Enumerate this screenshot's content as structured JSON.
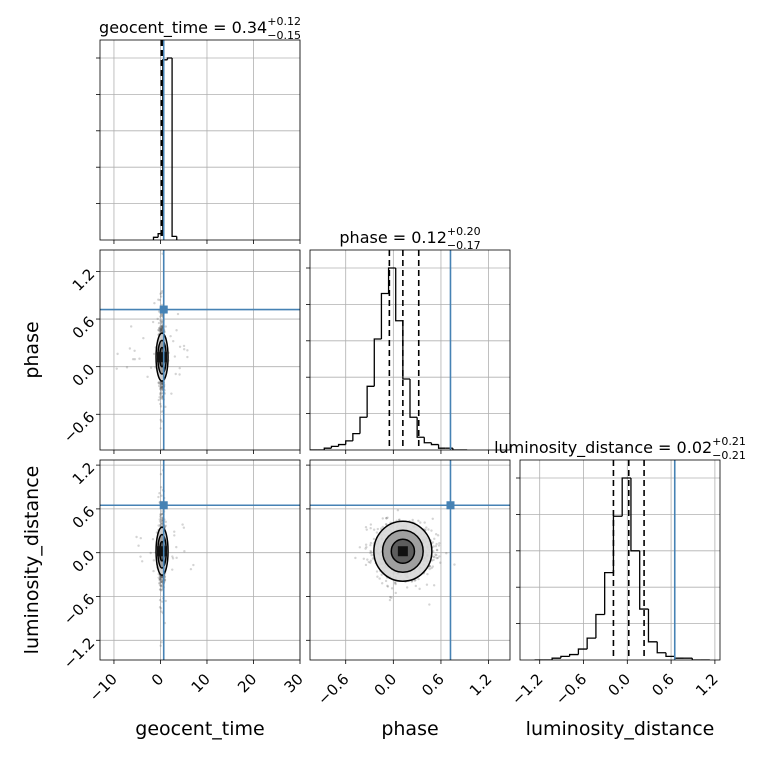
{
  "chart_data": {
    "type": "corner",
    "parameters": [
      {
        "name": "geocent_time",
        "label": "geocent_time",
        "median": 0.34,
        "plus": "0.12",
        "minus": "0.15",
        "median_text": "0.34",
        "range": [
          -13,
          30
        ],
        "ticks": [
          -10,
          0,
          10,
          20,
          30
        ],
        "tick_labels": [
          "−10",
          "0",
          "10",
          "20",
          "30"
        ],
        "truth": 0.7
      },
      {
        "name": "phase",
        "label": "phase",
        "median": 0.12,
        "plus": "0.20",
        "minus": "0.17",
        "median_text": "0.12",
        "range": [
          -1.05,
          1.47
        ],
        "ticks": [
          -0.6,
          0.0,
          0.6,
          1.2
        ],
        "tick_labels": [
          "−0.6",
          "0.0",
          "0.6",
          "1.2"
        ],
        "truth": 0.72
      },
      {
        "name": "luminosity_distance",
        "label": "luminosity_distance",
        "median": 0.02,
        "plus": "0.21",
        "minus": "0.21",
        "median_text": "0.02",
        "range": [
          -1.47,
          1.27
        ],
        "ticks": [
          -1.2,
          -0.6,
          0.0,
          0.6,
          1.2
        ],
        "tick_labels": [
          "−1.2",
          "−0.6",
          "0.0",
          "0.6",
          "1.2"
        ],
        "truth": 0.65
      }
    ],
    "histograms": [
      {
        "param": "geocent_time",
        "bins": [
          -1.5,
          -0.5,
          0.5,
          1.5,
          2.5,
          3.5
        ],
        "counts": [
          0.015,
          0.035,
          1.0,
          1.01,
          0.02
        ]
      },
      {
        "param": "phase",
        "bins": [
          -1.05,
          -0.96,
          -0.87,
          -0.78,
          -0.69,
          -0.6,
          -0.51,
          -0.42,
          -0.33,
          -0.24,
          -0.15,
          -0.06,
          0.03,
          0.12,
          0.21,
          0.3,
          0.39,
          0.48,
          0.57,
          0.66,
          0.75,
          0.84,
          0.93
        ],
        "counts": [
          0.0,
          0.0,
          0.01,
          0.02,
          0.03,
          0.05,
          0.09,
          0.18,
          0.35,
          0.61,
          0.86,
          1.0,
          0.71,
          0.39,
          0.18,
          0.07,
          0.04,
          0.03,
          0.01,
          0.01,
          0.0,
          0.0
        ]
      },
      {
        "param": "luminosity_distance",
        "bins": [
          -1.27,
          -1.15,
          -1.03,
          -0.91,
          -0.79,
          -0.67,
          -0.55,
          -0.43,
          -0.31,
          -0.19,
          -0.07,
          0.05,
          0.17,
          0.29,
          0.41,
          0.53,
          0.65,
          0.77,
          0.89,
          1.01,
          1.13
        ],
        "counts": [
          0.0,
          0.0,
          0.01,
          0.02,
          0.03,
          0.06,
          0.12,
          0.25,
          0.48,
          0.79,
          1.0,
          0.6,
          0.28,
          0.1,
          0.04,
          0.02,
          0.01,
          0.01,
          0.0,
          0.0
        ]
      }
    ],
    "quantiles": [
      0.16,
      0.5,
      0.84
    ],
    "truth_color": "#4682b4",
    "grid": true
  }
}
